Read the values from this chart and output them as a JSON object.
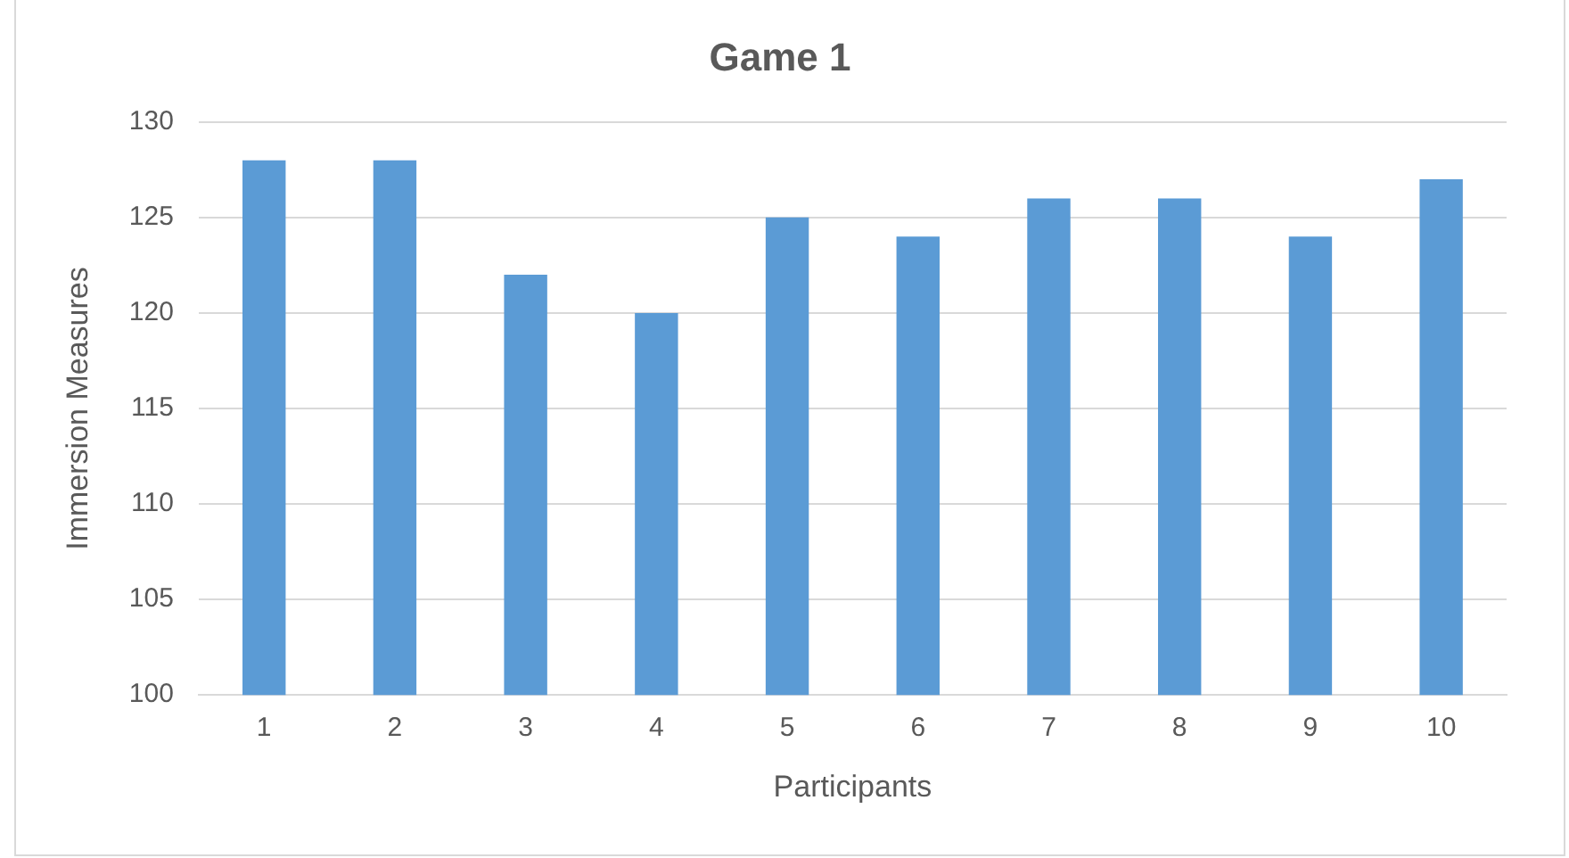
{
  "chart_data": {
    "type": "bar",
    "title": "Game 1",
    "xlabel": "Participants",
    "ylabel": "Immersion Measures",
    "categories": [
      "1",
      "2",
      "3",
      "4",
      "5",
      "6",
      "7",
      "8",
      "9",
      "10"
    ],
    "values": [
      128,
      128,
      122,
      120,
      125,
      124,
      126,
      126,
      124,
      127
    ],
    "color": "#5b9bd5",
    "ylim": [
      100,
      130
    ],
    "yticks": [
      100,
      105,
      110,
      115,
      120,
      125,
      130
    ],
    "grid": "y",
    "legend": false
  }
}
